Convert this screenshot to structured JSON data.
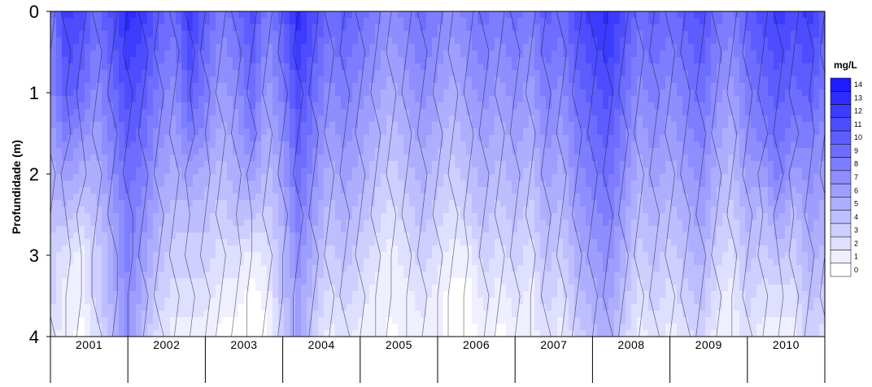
{
  "chart_data": {
    "type": "heatmap",
    "title": "",
    "xlabel": "",
    "ylabel": "Profundidade (m)",
    "x_categories": [
      "2001",
      "2002",
      "2003",
      "2004",
      "2005",
      "2006",
      "2007",
      "2008",
      "2009",
      "2010"
    ],
    "y_ticks": [
      "0",
      "1",
      "2",
      "3",
      "4"
    ],
    "ylim": [
      4,
      0
    ],
    "legend": {
      "title": "mg/L",
      "ticks": [
        "14",
        "13",
        "12",
        "11",
        "10",
        "9",
        "8",
        "7",
        "6",
        "5",
        "4",
        "3",
        "2",
        "1",
        "0"
      ],
      "placement": "right",
      "color_low": "#ffffff",
      "color_high": "#1c1cff"
    },
    "depths_m": [
      0,
      0.5,
      1,
      1.5,
      2,
      2.5,
      3,
      3.5,
      4
    ],
    "years_x": [
      2001.0,
      2001.2,
      2001.4,
      2001.6,
      2001.8,
      2002.0,
      2002.2,
      2002.4,
      2002.6,
      2002.8,
      2003.0,
      2003.2,
      2003.4,
      2003.6,
      2003.8,
      2004.0,
      2004.2,
      2004.4,
      2004.6,
      2004.8,
      2005.0,
      2005.2,
      2005.4,
      2005.6,
      2005.8,
      2006.0,
      2006.2,
      2006.4,
      2006.6,
      2006.8,
      2007.0,
      2007.2,
      2007.4,
      2007.6,
      2007.8,
      2008.0,
      2008.2,
      2008.4,
      2008.6,
      2008.8,
      2009.0,
      2009.2,
      2009.4,
      2009.6,
      2009.8,
      2010.0,
      2010.2,
      2010.4,
      2010.6,
      2010.8,
      2011.0
    ],
    "z_values": [
      [
        8,
        12,
        11,
        9,
        11,
        13,
        12,
        10,
        9,
        12,
        10,
        8,
        9,
        11,
        8,
        10,
        13,
        11,
        9,
        10,
        9,
        8,
        7,
        8,
        9,
        8,
        7,
        8,
        9,
        8,
        9,
        8,
        10,
        9,
        11,
        12,
        13,
        11,
        9,
        10,
        9,
        10,
        11,
        9,
        8,
        10,
        11,
        12,
        11,
        12,
        10
      ],
      [
        7,
        11,
        10,
        8,
        10,
        12,
        11,
        9,
        8,
        11,
        9,
        7,
        8,
        10,
        7,
        9,
        12,
        10,
        8,
        9,
        8,
        7,
        6,
        7,
        8,
        7,
        6,
        7,
        8,
        7,
        8,
        7,
        9,
        8,
        10,
        11,
        12,
        10,
        8,
        9,
        8,
        9,
        10,
        8,
        7,
        9,
        10,
        11,
        10,
        11,
        9
      ],
      [
        7,
        10,
        9,
        7,
        9,
        11,
        10,
        8,
        7,
        10,
        8,
        6,
        7,
        9,
        6,
        8,
        11,
        9,
        7,
        8,
        7,
        6,
        5,
        6,
        7,
        6,
        5,
        6,
        7,
        6,
        7,
        6,
        8,
        7,
        9,
        10,
        11,
        9,
        7,
        8,
        7,
        8,
        9,
        7,
        6,
        8,
        9,
        10,
        9,
        10,
        8
      ],
      [
        6,
        8,
        7,
        6,
        8,
        10,
        9,
        7,
        6,
        8,
        7,
        5,
        6,
        8,
        5,
        7,
        10,
        8,
        6,
        7,
        6,
        5,
        4,
        5,
        6,
        5,
        4,
        5,
        6,
        5,
        6,
        5,
        7,
        6,
        8,
        9,
        10,
        8,
        6,
        7,
        6,
        7,
        8,
        6,
        5,
        7,
        8,
        9,
        8,
        8,
        7
      ],
      [
        5,
        6,
        5,
        5,
        7,
        9,
        8,
        6,
        5,
        6,
        5,
        4,
        5,
        6,
        4,
        6,
        9,
        7,
        5,
        6,
        5,
        4,
        3,
        4,
        5,
        4,
        3,
        4,
        5,
        4,
        5,
        4,
        6,
        5,
        7,
        8,
        9,
        7,
        5,
        6,
        5,
        6,
        7,
        5,
        4,
        6,
        6,
        8,
        6,
        7,
        6
      ],
      [
        4,
        4,
        3,
        4,
        6,
        8,
        7,
        5,
        4,
        4,
        4,
        3,
        4,
        4,
        3,
        5,
        8,
        6,
        4,
        5,
        4,
        3,
        2,
        3,
        4,
        3,
        2,
        3,
        4,
        3,
        4,
        3,
        5,
        4,
        6,
        7,
        8,
        6,
        4,
        5,
        4,
        5,
        6,
        4,
        3,
        5,
        4,
        6,
        4,
        6,
        5
      ],
      [
        3,
        2,
        1,
        3,
        5,
        8,
        6,
        4,
        3,
        3,
        3,
        2,
        2,
        1,
        2,
        4,
        7,
        5,
        3,
        4,
        3,
        2,
        1,
        2,
        3,
        2,
        1,
        1,
        3,
        2,
        3,
        2,
        4,
        3,
        5,
        6,
        7,
        5,
        3,
        4,
        3,
        4,
        5,
        3,
        2,
        4,
        3,
        4,
        3,
        5,
        4
      ],
      [
        3,
        1,
        1,
        3,
        5,
        7,
        5,
        3,
        2,
        2,
        2,
        1,
        1,
        0,
        1,
        4,
        6,
        4,
        2,
        3,
        2,
        1,
        1,
        1,
        2,
        1,
        0,
        0,
        2,
        1,
        2,
        1,
        3,
        2,
        4,
        5,
        6,
        4,
        2,
        3,
        2,
        3,
        4,
        2,
        1,
        3,
        2,
        2,
        2,
        4,
        3
      ],
      [
        2,
        1,
        0,
        2,
        4,
        7,
        4,
        2,
        1,
        1,
        1,
        0,
        0,
        0,
        0,
        3,
        6,
        3,
        1,
        2,
        1,
        1,
        0,
        1,
        1,
        1,
        0,
        0,
        1,
        0,
        1,
        1,
        2,
        1,
        3,
        4,
        5,
        3,
        1,
        2,
        1,
        2,
        3,
        1,
        1,
        2,
        1,
        1,
        1,
        3,
        2
      ]
    ]
  }
}
